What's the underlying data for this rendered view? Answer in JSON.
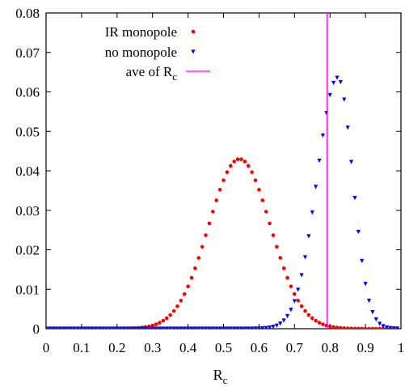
{
  "chart_data": {
    "type": "scatter",
    "xlabel": "R",
    "xlabel_sub": "c",
    "xlim": [
      0,
      1
    ],
    "ylim": [
      0,
      0.08
    ],
    "x_ticks": [
      "0",
      "0.1",
      "0.2",
      "0.3",
      "0.4",
      "0.5",
      "0.6",
      "0.7",
      "0.8",
      "0.9",
      "1"
    ],
    "y_ticks": [
      "0",
      "0.01",
      "0.02",
      "0.03",
      "0.04",
      "0.05",
      "0.06",
      "0.07",
      "0.08"
    ],
    "legend_position": "top-left",
    "series": [
      {
        "name": "IR monopole",
        "marker": "circle",
        "color": "#ff0000",
        "dist": {
          "peak_x": 0.545,
          "peak_y": 0.043,
          "sigma": 0.087
        },
        "x_start": 0.0,
        "x_end": 0.995,
        "step": 0.01
      },
      {
        "name": "no monopole",
        "marker": "triangle-down",
        "color": "#0000ff",
        "dist": {
          "peak_x": 0.822,
          "peak_y": 0.0636,
          "sigma_left": 0.058,
          "sigma_right": 0.042
        },
        "x_start": 0.0,
        "x_end": 0.995,
        "step": 0.01
      },
      {
        "name": "ave of R",
        "name_sub": "c",
        "marker": "line",
        "color": "#ff00ff",
        "vline_x": 0.792
      }
    ]
  }
}
